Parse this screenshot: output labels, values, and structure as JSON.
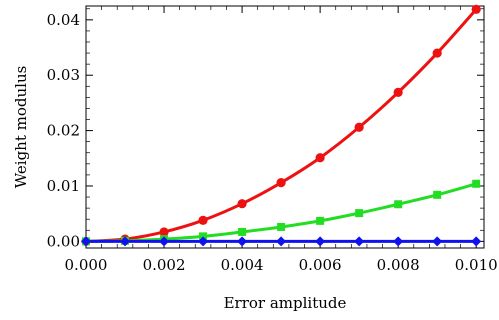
{
  "chart_data": {
    "type": "line",
    "title": "",
    "xlabel": "Error amplitude",
    "ylabel": "Weight modulus",
    "xlim": [
      0,
      0.0102
    ],
    "ylim": [
      -0.0012,
      0.0425
    ],
    "grid": false,
    "x_ticks": [
      {
        "value": 0.0,
        "label": "0.000"
      },
      {
        "value": 0.002,
        "label": "0.002"
      },
      {
        "value": 0.004,
        "label": "0.004"
      },
      {
        "value": 0.006,
        "label": "0.006"
      },
      {
        "value": 0.008,
        "label": "0.008"
      },
      {
        "value": 0.01,
        "label": "0.010"
      }
    ],
    "y_ticks": [
      {
        "value": 0.0,
        "label": "0.00"
      },
      {
        "value": 0.01,
        "label": "0.01"
      },
      {
        "value": 0.02,
        "label": "0.02"
      },
      {
        "value": 0.03,
        "label": "0.03"
      },
      {
        "value": 0.04,
        "label": "0.04"
      }
    ],
    "x": [
      0.0,
      0.001,
      0.002,
      0.003,
      0.004,
      0.005,
      0.006,
      0.007,
      0.008,
      0.009,
      0.01
    ],
    "series": [
      {
        "color": "#ee1111",
        "marker": "circle",
        "values": [
          0.0,
          0.0004,
          0.0017,
          0.0038,
          0.0068,
          0.0106,
          0.0151,
          0.0206,
          0.0269,
          0.034,
          0.0419
        ]
      },
      {
        "color": "#22dd22",
        "marker": "square",
        "values": [
          0.0,
          0.0001,
          0.0004,
          0.0009,
          0.0017,
          0.0026,
          0.0037,
          0.0051,
          0.0067,
          0.0084,
          0.0104
        ]
      },
      {
        "color": "#1111ee",
        "marker": "diamond",
        "values": [
          0.0,
          0.0,
          0.0,
          0.0,
          0.0,
          0.0,
          0.0,
          0.0,
          0.0,
          0.0,
          0.0
        ]
      }
    ]
  }
}
